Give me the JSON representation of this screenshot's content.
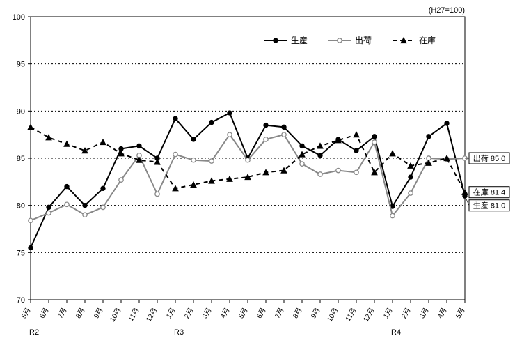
{
  "chart": {
    "type": "line",
    "note": "(H27=100)",
    "background_color": "#ffffff",
    "axis_color": "#000000",
    "grid_color": "#000000",
    "grid_dash": "2,3",
    "font_family": "sans-serif",
    "tick_font_size": 11,
    "x_tick_font_size": 10,
    "legend_font_size": 12,
    "y": {
      "min": 70,
      "max": 100,
      "step": 5
    },
    "x_labels": [
      "5月",
      "6月",
      "7月",
      "8月",
      "9月",
      "10月",
      "11月",
      "12月",
      "1月",
      "2月",
      "3月",
      "4月",
      "5月",
      "6月",
      "7月",
      "8月",
      "9月",
      "10月",
      "11月",
      "12月",
      "1月",
      "2月",
      "3月",
      "4月",
      "5月"
    ],
    "sub_labels": [
      {
        "at": 0,
        "text": "R2"
      },
      {
        "at": 8,
        "text": "R3"
      },
      {
        "at": 20,
        "text": "R4"
      }
    ],
    "series": [
      {
        "name": "生産",
        "key": "seisan",
        "color": "#000000",
        "marker": "circle-filled",
        "line_width": 2,
        "dash": null,
        "data": [
          75.5,
          79.8,
          82.0,
          80.0,
          81.8,
          86.0,
          86.3,
          85.0,
          89.2,
          87.0,
          88.8,
          89.8,
          85.0,
          88.5,
          88.3,
          86.3,
          85.3,
          87.0,
          85.8,
          87.3,
          79.9,
          83.0,
          87.3,
          88.7,
          81.0
        ]
      },
      {
        "name": "出荷",
        "key": "shukka",
        "color": "#888888",
        "marker": "circle-open",
        "line_width": 2,
        "dash": null,
        "data": [
          78.4,
          79.2,
          80.1,
          79.0,
          79.8,
          82.7,
          85.3,
          81.2,
          85.4,
          84.8,
          84.7,
          87.5,
          84.8,
          87.0,
          87.5,
          84.4,
          83.3,
          83.7,
          83.5,
          86.7,
          78.9,
          81.3,
          85.0,
          84.9,
          85.0
        ]
      },
      {
        "name": "在庫",
        "key": "zaiko",
        "color": "#000000",
        "marker": "triangle-filled",
        "line_width": 2,
        "dash": "6,5",
        "data": [
          88.3,
          87.2,
          86.5,
          85.8,
          86.7,
          85.5,
          84.8,
          84.6,
          81.8,
          82.2,
          82.6,
          82.8,
          83.0,
          83.5,
          83.7,
          85.4,
          86.3,
          86.9,
          87.5,
          83.5,
          85.5,
          84.2,
          84.5,
          85.0,
          81.4
        ]
      }
    ],
    "legend": {
      "position": "top-right",
      "items": [
        {
          "series": "seisan",
          "label": "生産"
        },
        {
          "series": "shukka",
          "label": "出荷"
        },
        {
          "series": "zaiko",
          "label": "在庫"
        }
      ]
    },
    "end_labels": [
      {
        "text": "出荷 85.0",
        "y": 85.0,
        "rank": 0
      },
      {
        "text": "在庫 81.4",
        "y": 81.4,
        "rank": 1
      },
      {
        "text": "生産 81.0",
        "y": 81.0,
        "rank": 2
      }
    ]
  }
}
